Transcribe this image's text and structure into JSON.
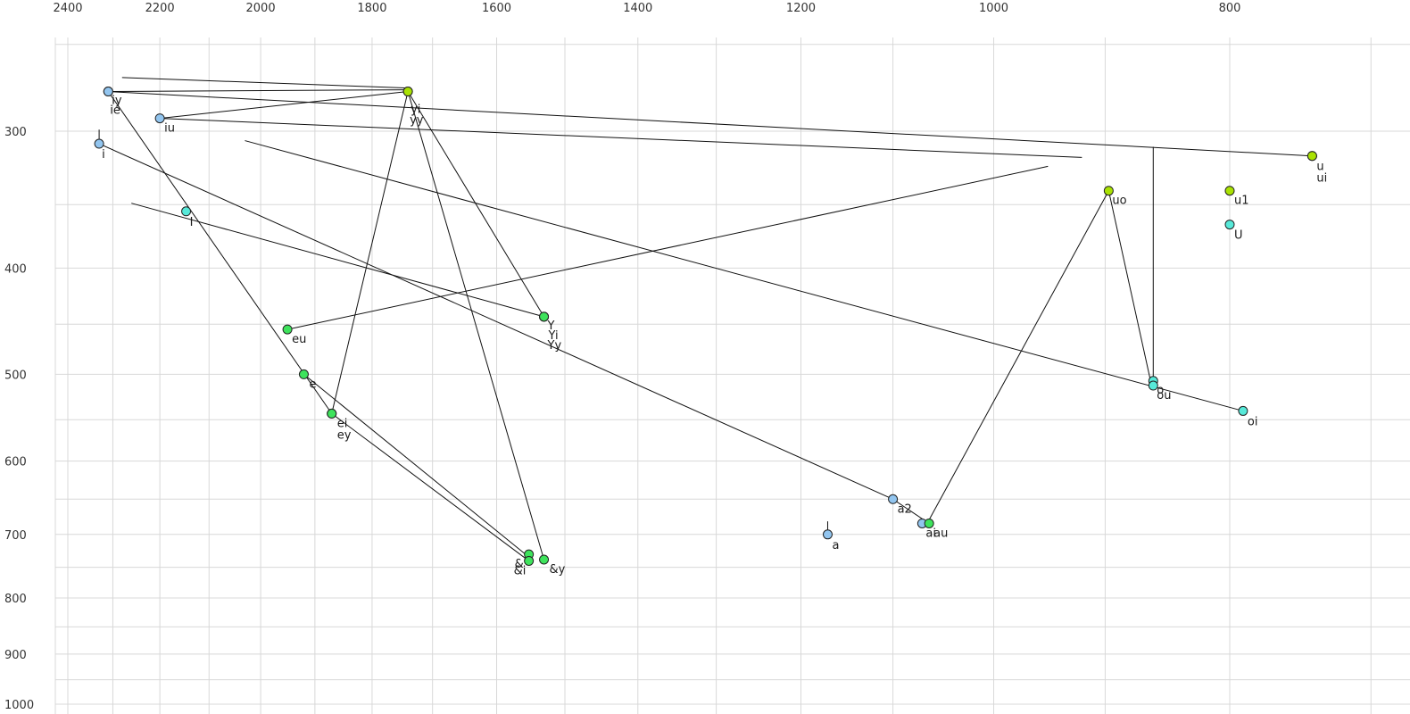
{
  "chart_data": {
    "type": "scatter",
    "title": "",
    "x_axis": {
      "position": "top",
      "tick_labels": [
        "2400",
        "2200",
        "2000",
        "1800",
        "1600",
        "1400",
        "1200",
        "1000",
        "800"
      ],
      "tick_values": [
        2400,
        2200,
        2000,
        1800,
        1600,
        1400,
        1200,
        1000,
        800
      ],
      "minor_grid_step": 100,
      "grid_min": 700,
      "grid_max": 2400,
      "direction": "reversed"
    },
    "y_axis": {
      "position": "left",
      "tick_labels": [
        "300",
        "400",
        "500",
        "600",
        "700",
        "800",
        "900",
        "1000"
      ],
      "tick_values": [
        300,
        400,
        500,
        600,
        700,
        800,
        900,
        1000
      ],
      "minor_grid_step": 50,
      "grid_min": 250,
      "grid_max": 1000,
      "direction": "down"
    },
    "points": [
      {
        "label": "iy",
        "f2": 2310,
        "f1": 276,
        "color": "light_blue",
        "label_offset": [
          4,
          9
        ]
      },
      {
        "label": "ie",
        "f2": 2310,
        "f1": 276,
        "color": "light_blue",
        "label_offset": [
          2,
          20
        ]
      },
      {
        "label": "iu",
        "f2": 2200,
        "f1": 292,
        "color": "light_blue",
        "label_offset": [
          5,
          10
        ]
      },
      {
        "label": "i",
        "f2": 2330,
        "f1": 308,
        "color": "light_blue",
        "label_offset": [
          3,
          11
        ]
      },
      {
        "label": "I",
        "f2": 2146,
        "f1": 355,
        "color": "cyan",
        "label_offset": [
          4,
          11
        ]
      },
      {
        "label": "yi",
        "f2": 1740,
        "f1": 276,
        "color": "yellow_green",
        "label_offset": [
          3,
          19
        ]
      },
      {
        "label": "yy",
        "f2": 1740,
        "f1": 276,
        "color": "yellow_green",
        "label_offset": [
          2,
          31
        ]
      },
      {
        "label": "eu",
        "f2": 1950,
        "f1": 455,
        "color": "green",
        "label_offset": [
          5,
          10
        ]
      },
      {
        "label": "e",
        "f2": 1920,
        "f1": 500,
        "color": "green",
        "label_offset": [
          6,
          10
        ]
      },
      {
        "label": "ei",
        "f2": 1870,
        "f1": 543,
        "color": "green",
        "label_offset": [
          6,
          10
        ]
      },
      {
        "label": "ey",
        "f2": 1870,
        "f1": 543,
        "color": "green",
        "label_offset": [
          6,
          23
        ]
      },
      {
        "label": "Y",
        "f2": 1530,
        "f1": 443,
        "color": "green",
        "label_offset": [
          4,
          9
        ]
      },
      {
        "label": "Yi",
        "f2": 1530,
        "f1": 443,
        "color": "green",
        "label_offset": [
          5,
          20
        ]
      },
      {
        "label": "Yy",
        "f2": 1530,
        "f1": 443,
        "color": "green",
        "label_offset": [
          4,
          31
        ]
      },
      {
        "label": "&",
        "f2": 1552,
        "f1": 730,
        "color": "green",
        "label_offset": [
          -16,
          10
        ]
      },
      {
        "label": "&i",
        "f2": 1552,
        "f1": 740,
        "color": "green",
        "label_offset": [
          -17,
          10
        ]
      },
      {
        "label": "&y",
        "f2": 1530,
        "f1": 738,
        "color": "green",
        "label_offset": [
          6,
          10
        ]
      },
      {
        "label": "a2",
        "f2": 1100,
        "f1": 650,
        "color": "light_blue",
        "label_offset": [
          5,
          10
        ]
      },
      {
        "label": "ai",
        "f2": 1070,
        "f1": 684,
        "color": "light_blue",
        "label_offset": [
          4,
          10
        ]
      },
      {
        "label": "au",
        "f2": 1063,
        "f1": 684,
        "color": "green",
        "label_offset": [
          5,
          10
        ]
      },
      {
        "label": "a",
        "f2": 1170,
        "f1": 700,
        "color": "light_blue",
        "label_offset": [
          5,
          11
        ]
      },
      {
        "label": "uo",
        "f2": 897,
        "f1": 340,
        "color": "yellow_green",
        "label_offset": [
          4,
          10
        ]
      },
      {
        "label": "u1",
        "f2": 800,
        "f1": 340,
        "color": "yellow_green",
        "label_offset": [
          5,
          10
        ]
      },
      {
        "label": "U",
        "f2": 800,
        "f1": 365,
        "color": "cyan",
        "label_offset": [
          5,
          11
        ]
      },
      {
        "label": "u",
        "f2": 740,
        "f1": 316,
        "color": "yellow_green",
        "label_offset": [
          5,
          11
        ]
      },
      {
        "label": "ui",
        "f2": 740,
        "f1": 316,
        "color": "yellow_green",
        "label_offset": [
          5,
          24
        ]
      },
      {
        "label": "o",
        "f2": 860,
        "f1": 507,
        "color": "cyan",
        "label_offset": [
          4,
          9
        ]
      },
      {
        "label": "ou",
        "f2": 860,
        "f1": 512,
        "color": "cyan",
        "label_offset": [
          4,
          10
        ]
      },
      {
        "label": "oi",
        "f2": 790,
        "f1": 540,
        "color": "cyan",
        "label_offset": [
          5,
          11
        ]
      }
    ],
    "segments": [
      [
        [
          2310,
          276
        ],
        [
          1740,
          275
        ]
      ],
      [
        [
          2280,
          268
        ],
        [
          1740,
          274
        ]
      ],
      [
        [
          2310,
          276
        ],
        [
          740,
          316
        ]
      ],
      [
        [
          2200,
          292
        ],
        [
          920,
          317
        ]
      ],
      [
        [
          2200,
          292
        ],
        [
          1740,
          276
        ]
      ],
      [
        [
          1740,
          276
        ],
        [
          1870,
          543
        ]
      ],
      [
        [
          1740,
          276
        ],
        [
          1530,
          738
        ]
      ],
      [
        [
          1740,
          276
        ],
        [
          1530,
          443
        ]
      ],
      [
        [
          1530,
          443
        ],
        [
          2260,
          349
        ]
      ],
      [
        [
          2330,
          308
        ],
        [
          1100,
          650
        ]
      ],
      [
        [
          1100,
          650
        ],
        [
          1063,
          684
        ]
      ],
      [
        [
          1950,
          455
        ],
        [
          950,
          323
        ]
      ],
      [
        [
          1920,
          500
        ],
        [
          1552,
          734
        ]
      ],
      [
        [
          1870,
          543
        ],
        [
          1552,
          740
        ]
      ],
      [
        [
          897,
          340
        ],
        [
          862,
          508
        ]
      ],
      [
        [
          860,
          310
        ],
        [
          860,
          507
        ]
      ],
      [
        [
          897,
          340
        ],
        [
          1065,
          684
        ]
      ],
      [
        [
          2030,
          306
        ],
        [
          790,
          540
        ]
      ],
      [
        [
          2310,
          276
        ],
        [
          1870,
          543
        ]
      ]
    ],
    "whiskers": [
      [
        [
          2330,
          299
        ],
        [
          2330,
          308
        ]
      ],
      [
        [
          1170,
          681
        ],
        [
          1170,
          700
        ]
      ]
    ]
  },
  "colors": {
    "background": "#ffffff",
    "grid": "#d8d8d8",
    "plot_border": "#cccccc",
    "line": "#111111",
    "point_stroke": "#222222",
    "label_text": "#1a1a1a",
    "axis_text": "#333333",
    "light_blue": "#92C5EF",
    "cyan": "#57E9D9",
    "green": "#3EE35C",
    "yellow_green": "#A9E203"
  }
}
